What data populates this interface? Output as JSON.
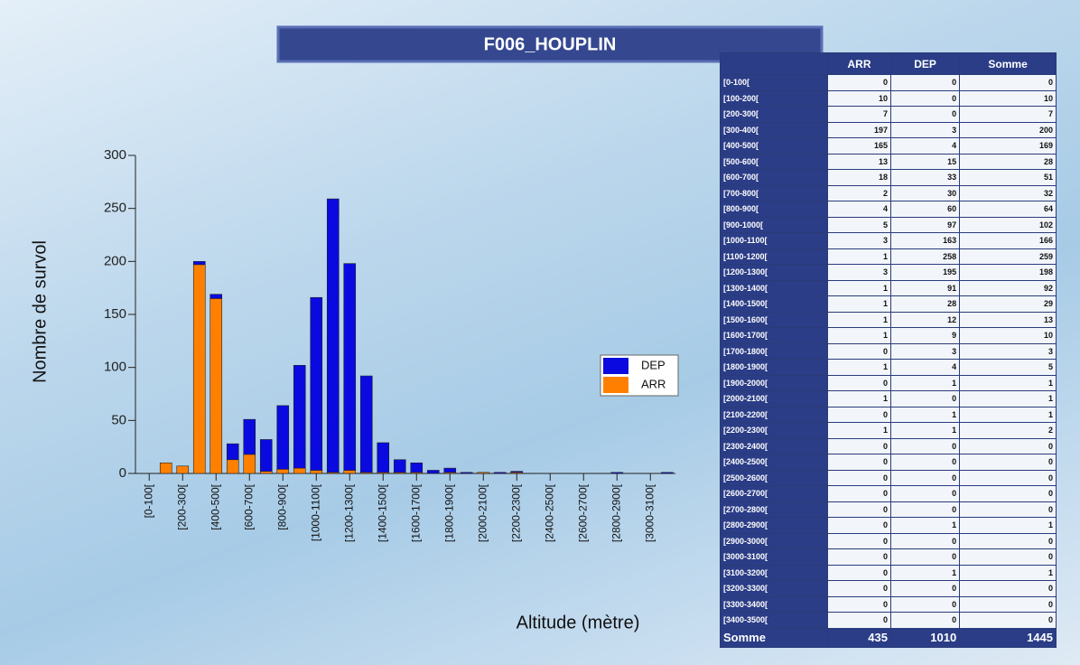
{
  "chart_data": {
    "type": "stacked_bar",
    "title": "F006_HOUPLIN",
    "ylabel": "Nombre de survol",
    "xlabel": "Altitude (mètre)",
    "categories": [
      "[0-100[",
      null,
      "[200-300[",
      null,
      "[400-500[",
      null,
      "[600-700[",
      null,
      "[800-900[",
      null,
      "[1000-1100[",
      null,
      "[1200-1300[",
      null,
      "[1400-1500[",
      null,
      "[1600-1700[",
      null,
      "[1800-1900[",
      null,
      "[2000-2100[",
      null,
      "[2200-2300[",
      null,
      "[2400-2500[",
      null,
      "[2600-2700[",
      null,
      "[2800-2900[",
      null,
      "[3000-3100[",
      null
    ],
    "series": [
      {
        "name": "ARR",
        "color": "#ff8000",
        "values": [
          0,
          10,
          7,
          197,
          165,
          13,
          18,
          2,
          4,
          5,
          3,
          1,
          3,
          1,
          1,
          1,
          1,
          0,
          1,
          0,
          1,
          0,
          1,
          0,
          0,
          0,
          0,
          0,
          0,
          0,
          0,
          0
        ]
      },
      {
        "name": "DEP",
        "color": "#0a0ae0",
        "values": [
          0,
          0,
          0,
          3,
          4,
          15,
          33,
          30,
          60,
          97,
          163,
          258,
          195,
          91,
          28,
          12,
          9,
          3,
          4,
          1,
          0,
          1,
          1,
          0,
          0,
          0,
          0,
          0,
          1,
          0,
          0,
          1
        ]
      }
    ],
    "ylim": [
      0,
      300
    ],
    "yticks": [
      0,
      50,
      100,
      150,
      200,
      250,
      300
    ],
    "grid": false
  },
  "table": {
    "columns": [
      "ARR",
      "DEP",
      "Somme"
    ],
    "rows": [
      [
        "[0-100[",
        0,
        0,
        0
      ],
      [
        "[100-200[",
        10,
        0,
        10
      ],
      [
        "[200-300[",
        7,
        0,
        7
      ],
      [
        "[300-400[",
        197,
        3,
        200
      ],
      [
        "[400-500[",
        165,
        4,
        169
      ],
      [
        "[500-600[",
        13,
        15,
        28
      ],
      [
        "[600-700[",
        18,
        33,
        51
      ],
      [
        "[700-800[",
        2,
        30,
        32
      ],
      [
        "[800-900[",
        4,
        60,
        64
      ],
      [
        "[900-1000[",
        5,
        97,
        102
      ],
      [
        "[1000-1100[",
        3,
        163,
        166
      ],
      [
        "[1100-1200[",
        1,
        258,
        259
      ],
      [
        "[1200-1300[",
        3,
        195,
        198
      ],
      [
        "[1300-1400[",
        1,
        91,
        92
      ],
      [
        "[1400-1500[",
        1,
        28,
        29
      ],
      [
        "[1500-1600[",
        1,
        12,
        13
      ],
      [
        "[1600-1700[",
        1,
        9,
        10
      ],
      [
        "[1700-1800[",
        0,
        3,
        3
      ],
      [
        "[1800-1900[",
        1,
        4,
        5
      ],
      [
        "[1900-2000[",
        0,
        1,
        1
      ],
      [
        "[2000-2100[",
        1,
        0,
        1
      ],
      [
        "[2100-2200[",
        0,
        1,
        1
      ],
      [
        "[2200-2300[",
        1,
        1,
        2
      ],
      [
        "[2300-2400[",
        0,
        0,
        0
      ],
      [
        "[2400-2500[",
        0,
        0,
        0
      ],
      [
        "[2500-2600[",
        0,
        0,
        0
      ],
      [
        "[2600-2700[",
        0,
        0,
        0
      ],
      [
        "[2700-2800[",
        0,
        0,
        0
      ],
      [
        "[2800-2900[",
        0,
        1,
        1
      ],
      [
        "[2900-3000[",
        0,
        0,
        0
      ],
      [
        "[3000-3100[",
        0,
        0,
        0
      ],
      [
        "[3100-3200[",
        0,
        1,
        1
      ],
      [
        "[3200-3300[",
        0,
        0,
        0
      ],
      [
        "[3300-3400[",
        0,
        0,
        0
      ],
      [
        "[3400-3500[",
        0,
        0,
        0
      ]
    ],
    "footer": [
      "Somme",
      435,
      1010,
      1445
    ]
  }
}
